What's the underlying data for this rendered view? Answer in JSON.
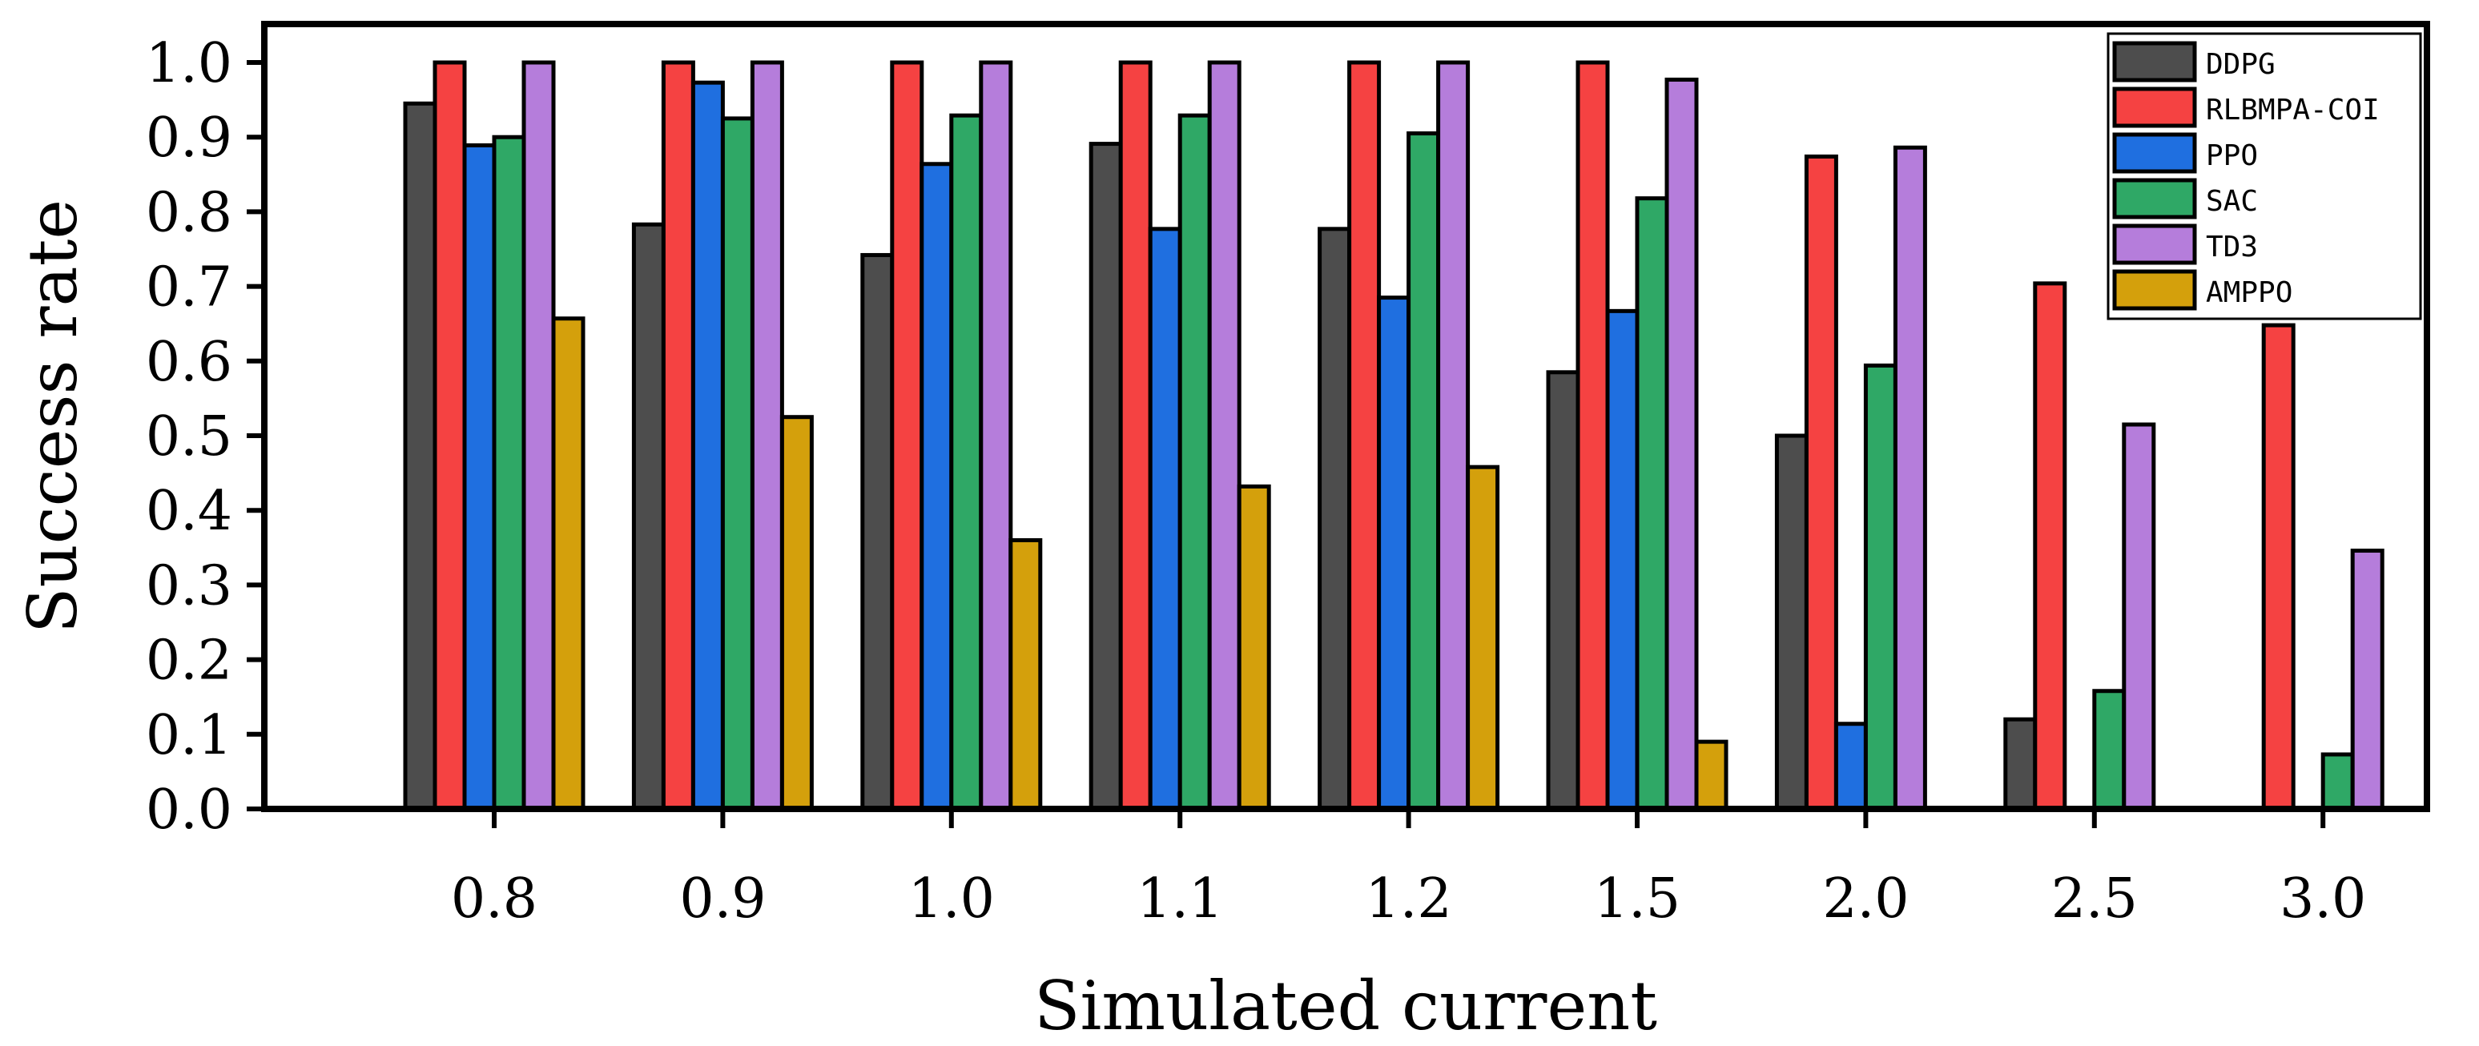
{
  "chart_data": {
    "type": "bar",
    "title": "",
    "xlabel": "Simulated current",
    "ylabel": "Success rate",
    "ylim": [
      0,
      1.05
    ],
    "yticks": [
      "0.0",
      "0.1",
      "0.2",
      "0.3",
      "0.4",
      "0.5",
      "0.6",
      "0.7",
      "0.8",
      "0.9",
      "1.0"
    ],
    "categories": [
      "0.8",
      "0.9",
      "1.0",
      "1.1",
      "1.2",
      "1.5",
      "2.0",
      "2.5",
      "3.0"
    ],
    "legend_position": "top-right",
    "series": [
      {
        "name": "DDPG",
        "color": "#4d4d4d",
        "values": [
          0.945,
          0.783,
          0.742,
          0.891,
          0.777,
          0.585,
          0.5,
          0.12,
          0.0
        ]
      },
      {
        "name": "RLBMPA-COI",
        "color": "#f54242",
        "values": [
          1.0,
          1.0,
          1.0,
          1.0,
          1.0,
          1.0,
          0.874,
          0.704,
          0.648
        ]
      },
      {
        "name": "PPO",
        "color": "#1f6fe0",
        "values": [
          0.889,
          0.973,
          0.864,
          0.777,
          0.685,
          0.667,
          0.114,
          0.0,
          0.0
        ]
      },
      {
        "name": "SAC",
        "color": "#2fa866",
        "values": [
          0.9,
          0.925,
          0.929,
          0.929,
          0.905,
          0.818,
          0.594,
          0.158,
          0.073
        ]
      },
      {
        "name": "TD3",
        "color": "#b57ddb",
        "values": [
          1.0,
          1.0,
          1.0,
          1.0,
          1.0,
          0.977,
          0.886,
          0.515,
          0.346
        ]
      },
      {
        "name": "AMPPO",
        "color": "#d4a00c",
        "values": [
          0.657,
          0.525,
          0.36,
          0.432,
          0.458,
          0.09,
          0.0,
          0.0,
          0.0
        ]
      }
    ]
  }
}
